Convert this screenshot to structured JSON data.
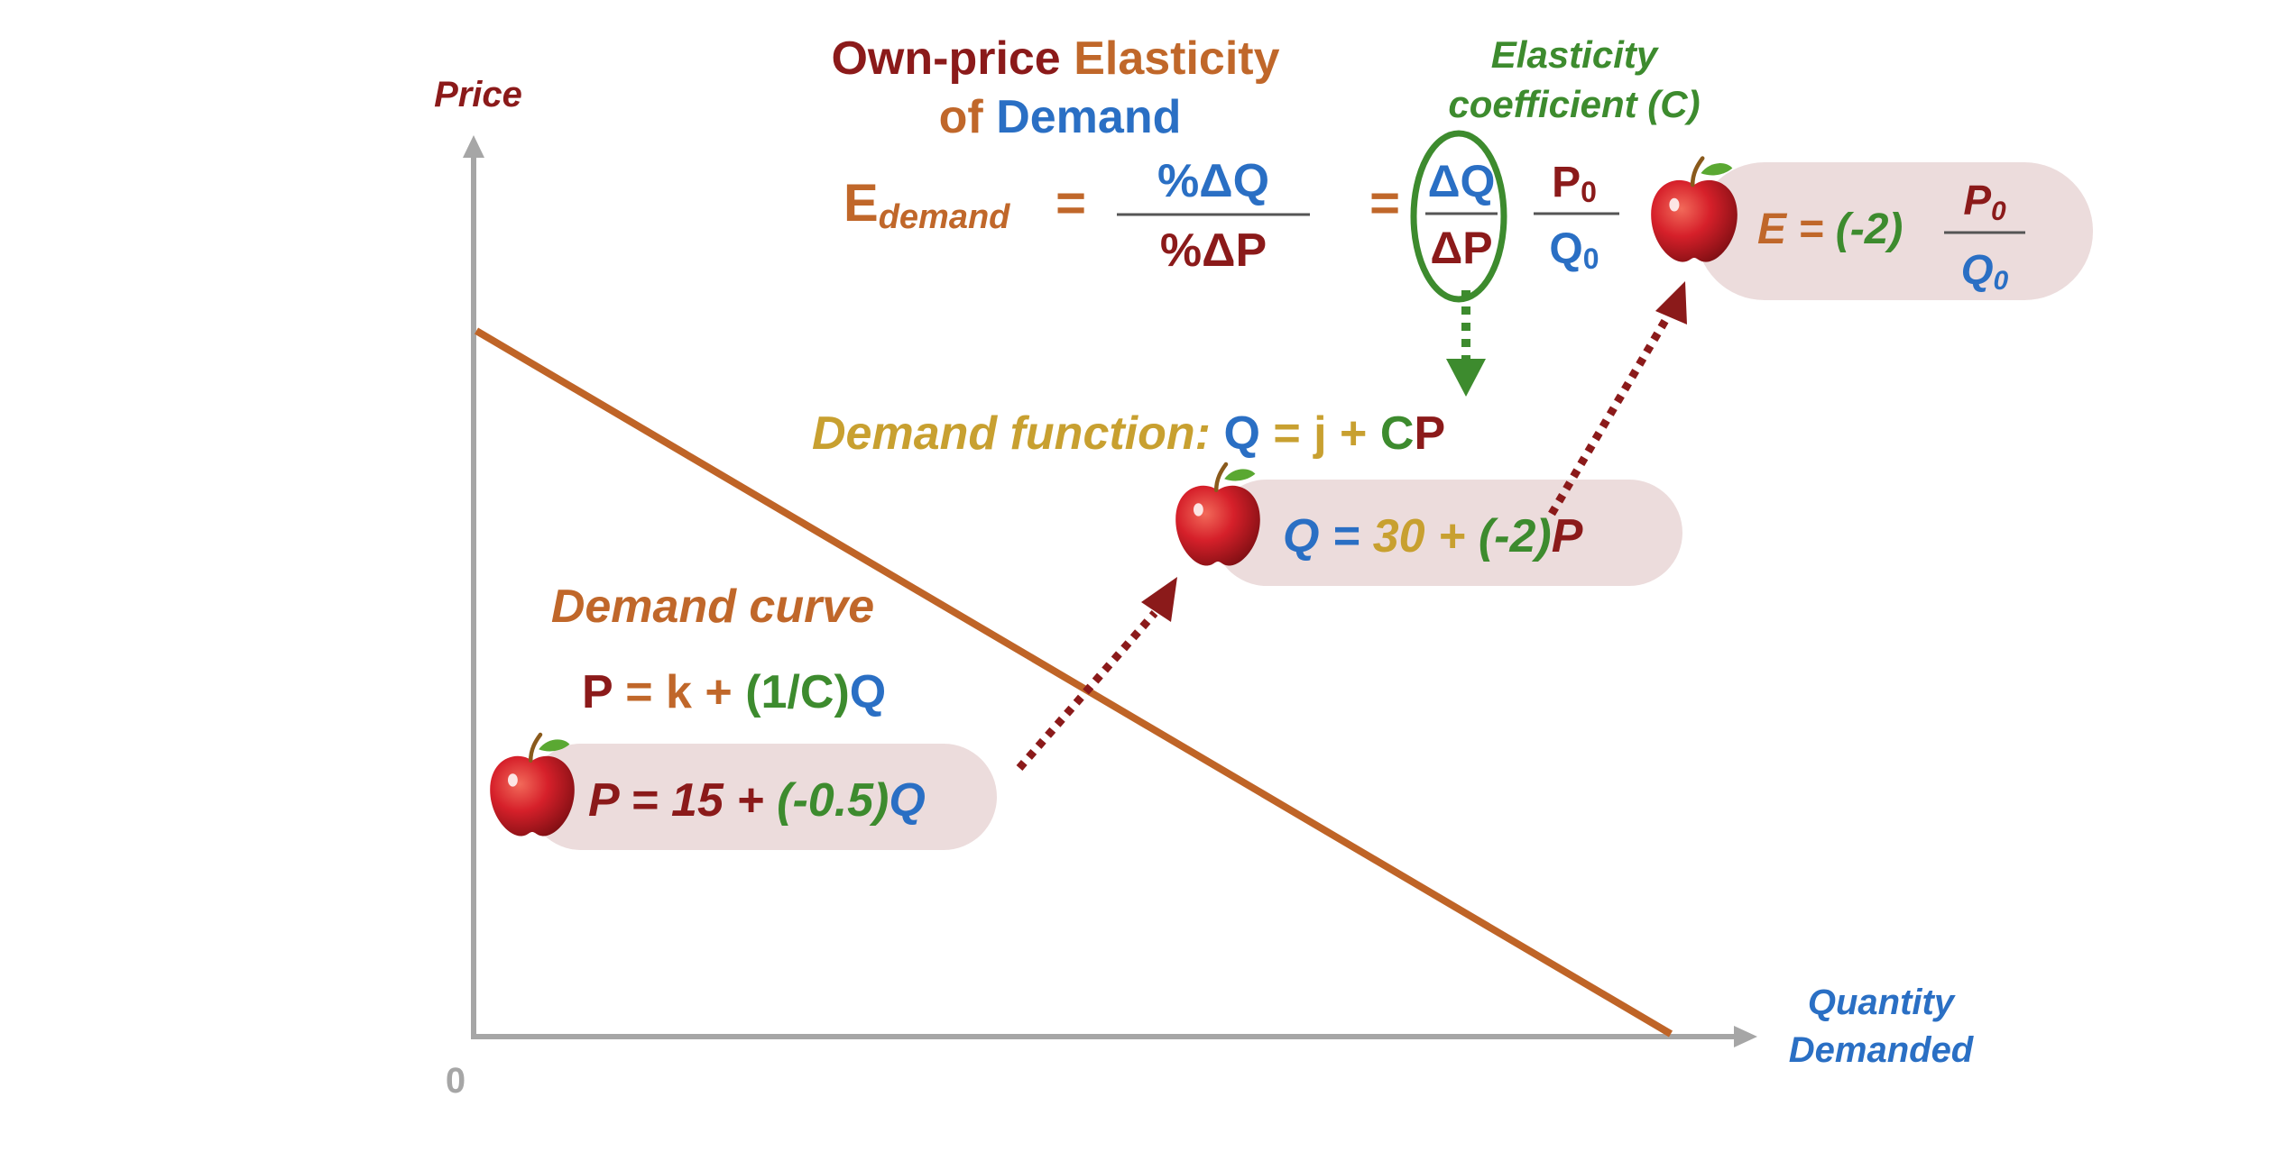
{
  "colors": {
    "maroon": "#8b1a1a",
    "orange": "#c0672a",
    "blue": "#2a6fc4",
    "green": "#3d8b2e",
    "gold": "#c8a030",
    "pill": "#ecdcdc",
    "axis": "#a6a6a6",
    "curve": "#bf6427"
  },
  "axes": {
    "y_label": "Price",
    "x_label_line1": "Quantity",
    "x_label_line2": "Demanded",
    "origin_label": "0"
  },
  "title": {
    "own_price": "Own-price",
    "elasticity": "Elasticity",
    "of": "of",
    "demand": "Demand"
  },
  "elasticity_coefficient": {
    "line1": "Elasticity",
    "line2": "coefficient (C)"
  },
  "formula": {
    "e_letter": "E",
    "e_subscript": "demand",
    "equals": "=",
    "pct_dq": "%ΔQ",
    "pct_dp": "%ΔP",
    "equals2": "=",
    "dq": "ΔQ",
    "dp": "ΔP",
    "p0": "P",
    "p0_sub": "0",
    "q0": "Q",
    "q0_sub": "0"
  },
  "e_result": {
    "left": "E = ",
    "coef": "(-2)",
    "p": "P",
    "p_sub": "0",
    "q": "Q",
    "q_sub": "0"
  },
  "demand_function": {
    "label": "Demand function:",
    "q": "Q",
    "eq": " = ",
    "j": "j",
    "plus": " + ",
    "c": "C",
    "p": "P"
  },
  "q_example": {
    "q": "Q",
    "eq": " =  ",
    "const": "30 + ",
    "coef": "(-2)",
    "p": "P"
  },
  "demand_curve": {
    "label": "Demand curve",
    "p": "P",
    "eq": " = ",
    "k": "k",
    "plus": " + ",
    "coef": "(1/C)",
    "q": "Q"
  },
  "p_example": {
    "p": "P",
    "eq": " = ",
    "const": "15 + ",
    "coef": "(-0.5)",
    "q": "Q"
  }
}
